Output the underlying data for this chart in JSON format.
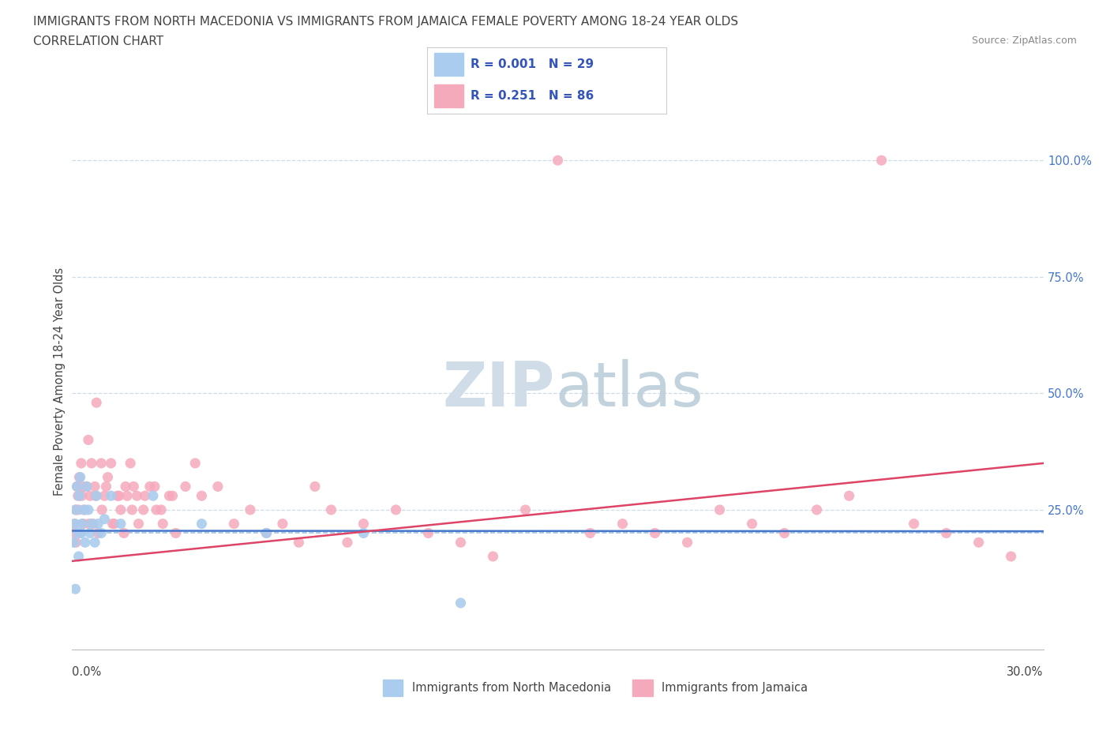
{
  "title_line1": "IMMIGRANTS FROM NORTH MACEDONIA VS IMMIGRANTS FROM JAMAICA FEMALE POVERTY AMONG 18-24 YEAR OLDS",
  "title_line2": "CORRELATION CHART",
  "source_text": "Source: ZipAtlas.com",
  "ylabel": "Female Poverty Among 18-24 Year Olds",
  "xlim": [
    0.0,
    30.0
  ],
  "ylim": [
    -5.0,
    110.0
  ],
  "blue_color": "#aaccee",
  "pink_color": "#f5aabc",
  "blue_line_color": "#4477cc",
  "pink_line_color": "#dd4466",
  "blue_dash_color": "#88aedd",
  "grid_color": "#ccdde8",
  "legend_R_color": "#3355bb",
  "watermark_color": "#d0dde8",
  "blue_R": 0.001,
  "blue_N": 29,
  "pink_R": 0.251,
  "pink_N": 86,
  "blue_trend": [
    20.5,
    20.4
  ],
  "pink_trend": [
    14.0,
    35.0
  ],
  "dashed_y": 20.0,
  "right_yticks": [
    25.0,
    50.0,
    75.0,
    100.0
  ],
  "blue_x": [
    0.05,
    0.08,
    0.1,
    0.12,
    0.15,
    0.18,
    0.2,
    0.22,
    0.25,
    0.28,
    0.3,
    0.35,
    0.4,
    0.45,
    0.5,
    0.55,
    0.6,
    0.7,
    0.75,
    0.8,
    0.9,
    1.0,
    1.2,
    1.5,
    2.5,
    4.0,
    6.0,
    9.0,
    12.0
  ],
  "blue_y": [
    18,
    22,
    8,
    25,
    30,
    20,
    15,
    28,
    32,
    20,
    22,
    25,
    18,
    30,
    25,
    20,
    22,
    18,
    28,
    22,
    20,
    23,
    28,
    22,
    28,
    22,
    20,
    20,
    5
  ],
  "pink_x": [
    0.05,
    0.08,
    0.1,
    0.12,
    0.15,
    0.18,
    0.2,
    0.22,
    0.25,
    0.28,
    0.3,
    0.35,
    0.4,
    0.45,
    0.5,
    0.55,
    0.6,
    0.65,
    0.7,
    0.75,
    0.8,
    0.9,
    1.0,
    1.1,
    1.2,
    1.3,
    1.4,
    1.5,
    1.6,
    1.7,
    1.8,
    1.9,
    2.0,
    2.2,
    2.4,
    2.6,
    2.8,
    3.0,
    3.2,
    3.5,
    3.8,
    4.0,
    4.5,
    5.0,
    5.5,
    6.0,
    6.5,
    7.0,
    7.5,
    8.0,
    8.5,
    9.0,
    10.0,
    11.0,
    12.0,
    13.0,
    14.0,
    15.0,
    16.0,
    17.0,
    18.0,
    19.0,
    20.0,
    21.0,
    22.0,
    23.0,
    24.0,
    25.0,
    26.0,
    27.0,
    28.0,
    29.0,
    0.32,
    0.52,
    0.72,
    0.92,
    1.05,
    1.25,
    1.45,
    1.65,
    1.85,
    2.05,
    2.25,
    2.55,
    2.75,
    3.1
  ],
  "pink_y": [
    20,
    22,
    25,
    18,
    30,
    28,
    25,
    32,
    20,
    35,
    28,
    22,
    25,
    30,
    40,
    28,
    35,
    22,
    30,
    48,
    20,
    35,
    28,
    32,
    35,
    22,
    28,
    25,
    20,
    28,
    35,
    30,
    28,
    25,
    30,
    25,
    22,
    28,
    20,
    30,
    35,
    28,
    30,
    22,
    25,
    20,
    22,
    18,
    30,
    25,
    18,
    22,
    25,
    20,
    18,
    15,
    25,
    100,
    20,
    22,
    20,
    18,
    25,
    22,
    20,
    25,
    28,
    100,
    22,
    20,
    18,
    15,
    30,
    22,
    28,
    25,
    30,
    22,
    28,
    30,
    25,
    22,
    28,
    30,
    25,
    28
  ]
}
